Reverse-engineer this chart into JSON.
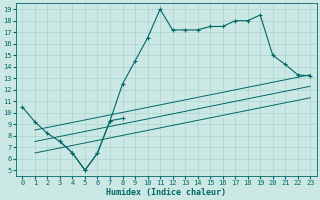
{
  "xlabel": "Humidex (Indice chaleur)",
  "xlim": [
    -0.5,
    23.5
  ],
  "ylim": [
    4.5,
    19.5
  ],
  "yticks": [
    5,
    6,
    7,
    8,
    9,
    10,
    11,
    12,
    13,
    14,
    15,
    16,
    17,
    18,
    19
  ],
  "xticks": [
    0,
    1,
    2,
    3,
    4,
    5,
    6,
    7,
    8,
    9,
    10,
    11,
    12,
    13,
    14,
    15,
    16,
    17,
    18,
    19,
    20,
    21,
    22,
    23
  ],
  "bg_color": "#cce8e4",
  "line_color": "#006868",
  "grid_color": "#aad4d0",
  "curve_main": {
    "x": [
      3,
      4,
      5,
      6,
      7,
      8,
      9,
      10,
      11,
      12,
      13,
      14,
      15,
      16,
      17,
      18,
      19,
      20,
      21,
      22,
      23
    ],
    "y": [
      7.5,
      6.5,
      5.0,
      6.5,
      9.3,
      12.5,
      14.5,
      16.5,
      19.0,
      17.2,
      17.2,
      17.2,
      17.5,
      17.5,
      18.0,
      18.0,
      18.5,
      15.0,
      14.2,
      13.3,
      13.2
    ]
  },
  "curve_dip": {
    "x": [
      0,
      1,
      2,
      3,
      4,
      5,
      6,
      7,
      8
    ],
    "y": [
      10.5,
      9.2,
      8.2,
      7.5,
      6.5,
      5.0,
      6.5,
      9.3,
      9.5
    ]
  },
  "line1": {
    "x": [
      1,
      23
    ],
    "y": [
      8.5,
      13.3
    ]
  },
  "line2": {
    "x": [
      1,
      23
    ],
    "y": [
      7.5,
      12.3
    ]
  },
  "line3": {
    "x": [
      1,
      23
    ],
    "y": [
      6.5,
      11.3
    ]
  },
  "markersize": 2.5
}
